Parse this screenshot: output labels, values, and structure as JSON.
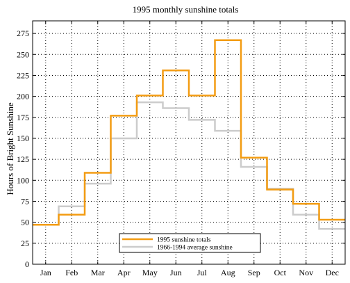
{
  "chart_data": {
    "type": "line",
    "title": "1995 monthly sunshine totals",
    "xlabel": "",
    "ylabel": "Hours of Bright Sunshine",
    "categories": [
      "Jan",
      "Feb",
      "Mar",
      "Apr",
      "May",
      "Jun",
      "Jul",
      "Aug",
      "Sep",
      "Oct",
      "Nov",
      "Dec"
    ],
    "y_ticks": [
      "0",
      "25",
      "50",
      "75",
      "100",
      "125",
      "150",
      "175",
      "200",
      "225",
      "250",
      "275"
    ],
    "ylim": [
      0,
      290
    ],
    "grid": true,
    "legend_position": "bottom-center",
    "step": true,
    "series": [
      {
        "name": "1995 sunshine totals",
        "color": "#f39c12",
        "values": [
          47,
          59,
          109,
          177,
          201,
          231,
          201,
          267,
          127,
          89,
          72,
          53
        ]
      },
      {
        "name": "1966-1994 average sunshine",
        "color": "#cccccc",
        "values": [
          47,
          69,
          96,
          150,
          193,
          186,
          172,
          159,
          116,
          90,
          59,
          42
        ]
      }
    ]
  }
}
